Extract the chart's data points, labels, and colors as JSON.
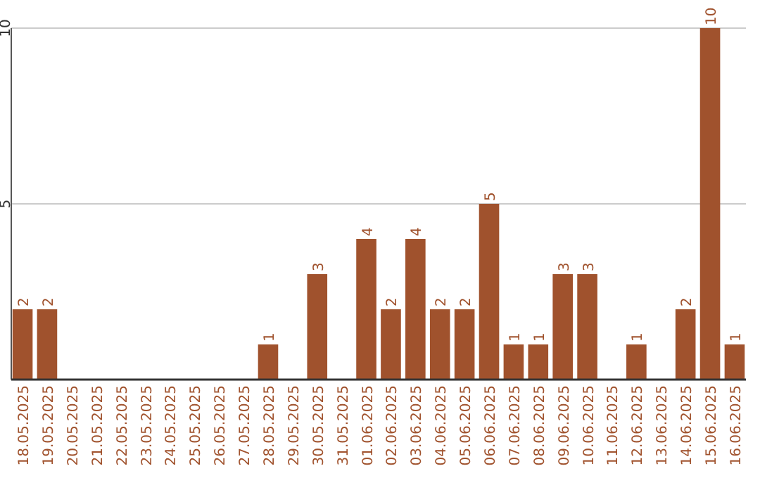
{
  "chart_data": {
    "type": "bar",
    "categories": [
      "18.05.2025",
      "19.05.2025",
      "20.05.2025",
      "21.05.2025",
      "22.05.2025",
      "23.05.2025",
      "24.05.2025",
      "25.05.2025",
      "26.05.2025",
      "27.05.2025",
      "28.05.2025",
      "29.05.2025",
      "30.05.2025",
      "31.05.2025",
      "01.06.2025",
      "02.06.2025",
      "03.06.2025",
      "04.06.2025",
      "05.06.2025",
      "06.06.2025",
      "07.06.2025",
      "08.06.2025",
      "09.06.2025",
      "10.06.2025",
      "11.06.2025",
      "12.06.2025",
      "13.06.2025",
      "14.06.2025",
      "15.06.2025",
      "16.06.2025"
    ],
    "values": [
      2,
      2,
      0,
      0,
      0,
      0,
      0,
      0,
      0,
      0,
      1,
      0,
      3,
      0,
      4,
      2,
      4,
      2,
      2,
      5,
      1,
      1,
      3,
      3,
      0,
      1,
      0,
      2,
      10,
      1
    ],
    "value_labels": [
      "2",
      "2",
      null,
      null,
      null,
      null,
      null,
      null,
      null,
      null,
      "1",
      null,
      "3",
      null,
      "4",
      "2",
      "4",
      "2",
      "2",
      "5",
      "1",
      "1",
      "3",
      "3",
      null,
      "1",
      null,
      "2",
      "10",
      "1"
    ],
    "color": "#a0522d",
    "ylim": [
      0,
      10
    ],
    "yticks": [
      {
        "value": 0,
        "label": null
      },
      5,
      10
    ],
    "grid": "y"
  }
}
